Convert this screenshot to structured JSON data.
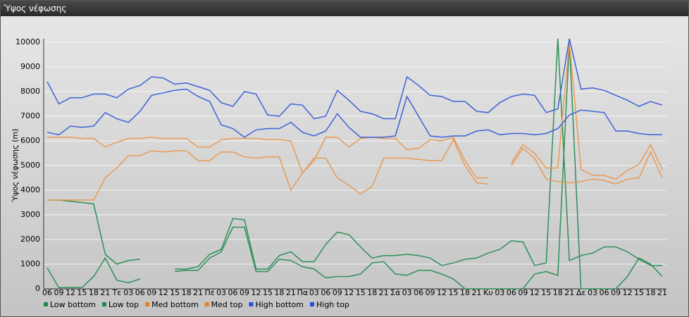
{
  "window_title": "Ύψος νέφωσης",
  "chart_data": {
    "type": "line",
    "y_label": "Ύψος νέφωσης (m)",
    "categories": [
      "06",
      "09",
      "12",
      "15",
      "18",
      "21",
      "Τε",
      "03",
      "06",
      "09",
      "12",
      "15",
      "18",
      "21",
      "Πέ",
      "03",
      "06",
      "09",
      "12",
      "15",
      "18",
      "21",
      "Πα",
      "03",
      "06",
      "09",
      "12",
      "15",
      "18",
      "21",
      "Σά",
      "03",
      "06",
      "09",
      "12",
      "15",
      "18",
      "21",
      "Κυ",
      "03",
      "06",
      "09",
      "12",
      "15",
      "18",
      "21",
      "Δε",
      "03",
      "06",
      "09",
      "12",
      "15",
      "18",
      "21"
    ],
    "ylim": [
      0,
      10000
    ],
    "yticks": [
      0,
      1000,
      2000,
      3000,
      4000,
      5000,
      6000,
      7000,
      8000,
      9000,
      10000
    ],
    "grid": true,
    "series": [
      {
        "name": "Low bottom",
        "color": "#2f8f5a",
        "values": [
          850,
          50,
          50,
          50,
          500,
          1250,
          350,
          250,
          400,
          null,
          null,
          700,
          750,
          750,
          1250,
          1500,
          2500,
          2500,
          700,
          700,
          1200,
          1150,
          900,
          800,
          450,
          500,
          500,
          600,
          1050,
          1100,
          600,
          550,
          750,
          750,
          600,
          400,
          0,
          0,
          0,
          0,
          0,
          0,
          600,
          700,
          550,
          10000,
          0,
          0,
          0,
          0,
          500,
          1250,
          1000,
          500
        ]
      },
      {
        "name": "Low top",
        "color": "#2f8f5a",
        "values": [
          3600,
          3600,
          3550,
          3500,
          3450,
          1400,
          1000,
          1150,
          1200,
          null,
          null,
          800,
          800,
          900,
          1400,
          1600,
          2850,
          2800,
          800,
          800,
          1350,
          1500,
          1100,
          1100,
          1800,
          2300,
          2200,
          1700,
          1250,
          1350,
          1350,
          1400,
          1350,
          1250,
          950,
          1050,
          1200,
          1250,
          1450,
          1600,
          1950,
          1900,
          950,
          1050,
          10150,
          1150,
          1350,
          1450,
          1700,
          1700,
          1500,
          1200,
          950,
          950
        ]
      },
      {
        "name": "Med bottom",
        "color": "#e89a55",
        "values": [
          3600,
          3600,
          3600,
          3600,
          3600,
          4500,
          4900,
          5400,
          5400,
          5600,
          5550,
          5600,
          5600,
          5200,
          5200,
          5550,
          5550,
          5350,
          5300,
          5350,
          5350,
          4000,
          4700,
          5300,
          5300,
          4500,
          4200,
          3850,
          4150,
          5300,
          5300,
          5300,
          5250,
          5200,
          5200,
          6050,
          5000,
          4300,
          4250,
          null,
          5000,
          5700,
          5300,
          4450,
          4350,
          4300,
          4350,
          4450,
          4400,
          4250,
          4450,
          4500,
          5550,
          4500
        ]
      },
      {
        "name": "Med top",
        "color": "#e89a55",
        "values": [
          6150,
          6150,
          6150,
          6100,
          6100,
          5750,
          5950,
          6100,
          6100,
          6150,
          6100,
          6100,
          6100,
          5750,
          5750,
          6050,
          6100,
          6100,
          6100,
          6050,
          6050,
          6000,
          4700,
          5200,
          6150,
          6150,
          5750,
          6100,
          6150,
          6100,
          6100,
          5650,
          5700,
          6050,
          6000,
          6150,
          5200,
          4500,
          4500,
          null,
          5100,
          5850,
          5500,
          4900,
          4900,
          10000,
          4850,
          4600,
          4600,
          4450,
          4800,
          5050,
          5850,
          4850
        ]
      },
      {
        "name": "High bottom",
        "color": "#3f62d6",
        "values": [
          6350,
          6250,
          6600,
          6550,
          6600,
          7150,
          6900,
          6750,
          7200,
          7850,
          7950,
          8050,
          8100,
          7800,
          7600,
          6650,
          6500,
          6150,
          6450,
          6500,
          6500,
          6750,
          6350,
          6200,
          6400,
          7100,
          6550,
          6150,
          6150,
          6150,
          6200,
          7800,
          7000,
          6200,
          6150,
          6200,
          6200,
          6400,
          6450,
          6250,
          6300,
          6300,
          6250,
          6300,
          6500,
          7050,
          7250,
          7200,
          7150,
          6400,
          6400,
          6300,
          6250,
          6250
        ]
      },
      {
        "name": "High top",
        "color": "#3f62d6",
        "values": [
          8400,
          7500,
          7750,
          7750,
          7900,
          7900,
          7750,
          8100,
          8250,
          8600,
          8550,
          8300,
          8350,
          8200,
          8050,
          7550,
          7400,
          8000,
          7900,
          7050,
          7000,
          7500,
          7450,
          6900,
          7000,
          8050,
          7650,
          7200,
          7100,
          6900,
          6900,
          8600,
          8250,
          7850,
          7800,
          7600,
          7600,
          7200,
          7150,
          7550,
          7800,
          7900,
          7850,
          7150,
          7300,
          10150,
          8100,
          8150,
          8050,
          7850,
          7650,
          7400,
          7600,
          7450
        ]
      }
    ],
    "legend_colors": [
      "#1e8a4c",
      "#1e8a4c",
      "#e8801e",
      "#e8801e",
      "#1f50e0",
      "#1f50e0"
    ]
  }
}
